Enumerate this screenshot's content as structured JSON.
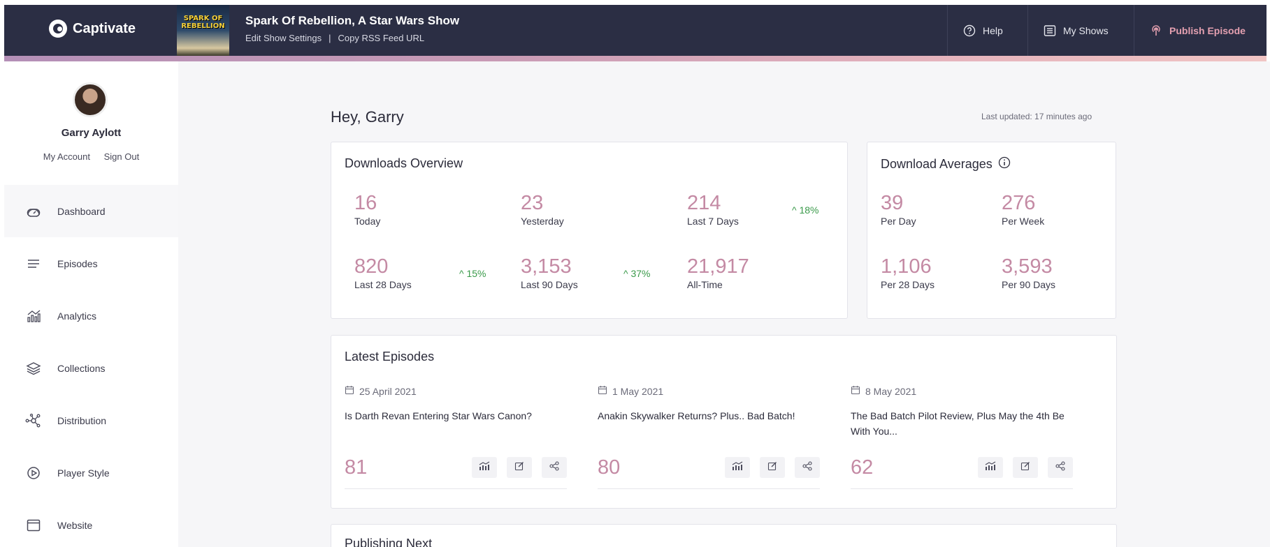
{
  "header": {
    "logo_text": "Captivate",
    "artwork_text": "SPARK OF REBELLION",
    "show_title": "Spark Of Rebellion, A Star Wars Show",
    "edit_settings": "Edit Show Settings",
    "separator": "|",
    "copy_rss": "Copy RSS Feed URL",
    "nav": {
      "help": "Help",
      "my_shows": "My Shows",
      "publish": "Publish Episode"
    }
  },
  "sidebar": {
    "user_name": "Garry Aylott",
    "my_account": "My Account",
    "sign_out": "Sign Out",
    "items": [
      {
        "label": "Dashboard",
        "icon": "dashboard-icon"
      },
      {
        "label": "Episodes",
        "icon": "episodes-icon"
      },
      {
        "label": "Analytics",
        "icon": "analytics-icon"
      },
      {
        "label": "Collections",
        "icon": "collections-icon"
      },
      {
        "label": "Distribution",
        "icon": "distribution-icon"
      },
      {
        "label": "Player Style",
        "icon": "player-style-icon"
      },
      {
        "label": "Website",
        "icon": "website-icon"
      }
    ]
  },
  "main": {
    "greeting": "Hey, Garry",
    "last_updated": "Last updated: 17 minutes ago",
    "downloads_overview": {
      "title": "Downloads Overview",
      "stats": [
        {
          "value": "16",
          "label": "Today"
        },
        {
          "value": "23",
          "label": "Yesterday"
        },
        {
          "value": "214",
          "label": "Last 7 Days",
          "trend": "18%"
        },
        {
          "value": "820",
          "label": "Last 28 Days",
          "trend": "15%"
        },
        {
          "value": "3,153",
          "label": "Last 90 Days",
          "trend": "37%"
        },
        {
          "value": "21,917",
          "label": "All-Time"
        }
      ]
    },
    "download_averages": {
      "title": "Download Averages",
      "stats": [
        {
          "value": "39",
          "label": "Per Day"
        },
        {
          "value": "276",
          "label": "Per Week"
        },
        {
          "value": "1,106",
          "label": "Per 28 Days"
        },
        {
          "value": "3,593",
          "label": "Per 90 Days"
        }
      ]
    },
    "latest_episodes": {
      "title": "Latest Episodes",
      "episodes": [
        {
          "date": "25 April 2021",
          "title": "Is Darth Revan Entering Star Wars Canon?",
          "downloads": "81"
        },
        {
          "date": "1 May 2021",
          "title": "Anakin Skywalker Returns? Plus.. Bad Batch!",
          "downloads": "80"
        },
        {
          "date": "8 May 2021",
          "title": "The Bad Batch Pilot Review, Plus May the 4th Be With You...",
          "downloads": "62"
        }
      ]
    },
    "publishing_next": {
      "title": "Publishing Next"
    }
  },
  "colors": {
    "topbar": "#2b2e44",
    "accent_pink": "#c48aa4",
    "trend_green": "#3a9a4a"
  }
}
